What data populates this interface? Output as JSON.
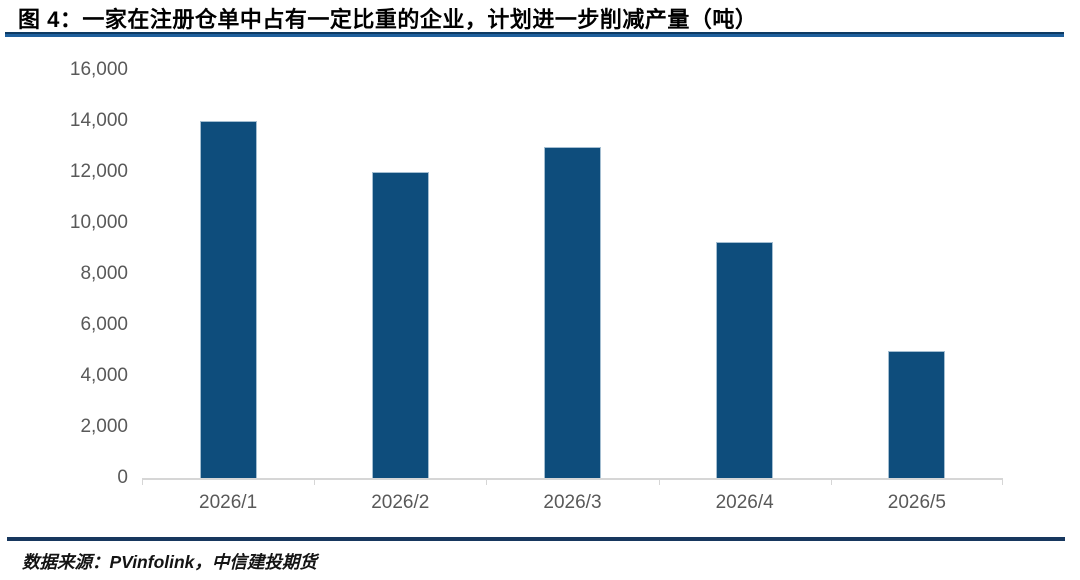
{
  "title": "图 4：一家在注册仓单中占有一定比重的企业，计划进一步削减产量（吨）",
  "footer": {
    "source_label": "数据来源：PVinfolink，中信建投期货"
  },
  "colors": {
    "bar": "#0e4d7c",
    "title_rule_top": "#0d3a63",
    "title_rule_bottom": "#1e5f9c",
    "footer_rule": "#17375e",
    "axis_line": "#d6d6d6",
    "tick_label": "#595959"
  },
  "chart_data": {
    "type": "bar",
    "title": "图 4：一家在注册仓单中占有一定比重的企业，计划进一步削减产量（吨）",
    "categories": [
      "2026/1",
      "2026/2",
      "2026/3",
      "2026/4",
      "2026/5"
    ],
    "values": [
      14000,
      12000,
      13000,
      9250,
      5000
    ],
    "xlabel": "",
    "ylabel": "",
    "ylim": [
      0,
      16000
    ],
    "ytick_interval": 2000,
    "ytick_labels": [
      "0",
      "2,000",
      "4,000",
      "6,000",
      "8,000",
      "10,000",
      "12,000",
      "14,000",
      "16,000"
    ],
    "grid": false,
    "legend_position": "none",
    "bar_color": "#0e4d7c",
    "unit": "吨"
  }
}
